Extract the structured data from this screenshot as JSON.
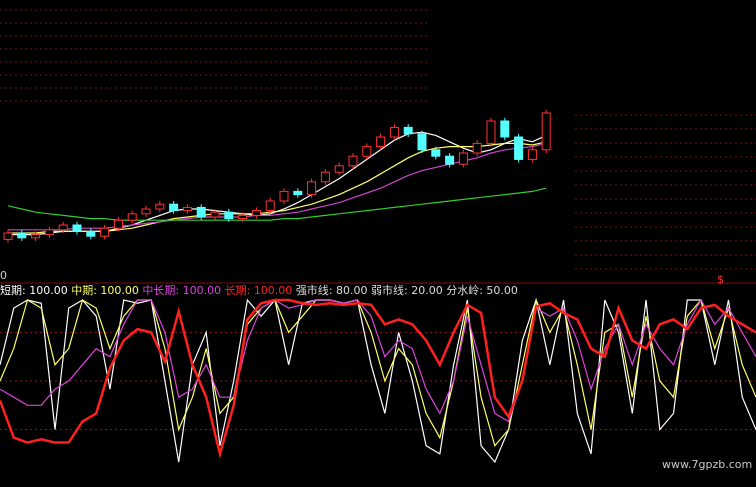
{
  "chart_data": [
    {
      "type": "candlestick",
      "open": [
        16,
        20,
        17,
        19,
        22,
        25,
        21,
        18,
        23,
        28,
        32,
        35,
        38,
        34,
        36,
        30,
        33,
        29,
        31,
        34,
        40,
        46,
        44,
        52,
        58,
        62,
        68,
        74,
        80,
        86,
        82,
        72,
        68,
        63,
        70,
        76,
        90,
        80,
        66,
        72
      ],
      "close": [
        20,
        17,
        19,
        22,
        25,
        21,
        18,
        23,
        28,
        32,
        35,
        38,
        34,
        36,
        30,
        33,
        29,
        31,
        34,
        40,
        46,
        44,
        52,
        58,
        62,
        68,
        74,
        80,
        86,
        82,
        72,
        68,
        63,
        70,
        76,
        90,
        80,
        66,
        72,
        95
      ],
      "high": [
        22,
        22,
        21,
        24,
        27,
        27,
        23,
        25,
        30,
        34,
        37,
        40,
        40,
        38,
        38,
        35,
        35,
        33,
        36,
        42,
        48,
        48,
        54,
        60,
        64,
        70,
        76,
        82,
        88,
        88,
        84,
        74,
        70,
        72,
        78,
        92,
        92,
        82,
        74,
        97
      ],
      "low": [
        14,
        15,
        15,
        17,
        20,
        19,
        16,
        16,
        21,
        26,
        30,
        33,
        32,
        32,
        28,
        28,
        27,
        27,
        29,
        32,
        38,
        42,
        42,
        50,
        56,
        60,
        66,
        72,
        78,
        80,
        70,
        66,
        61,
        61,
        68,
        74,
        78,
        64,
        64,
        70
      ],
      "up_color": "#ff3232",
      "down_color": "#54ffff",
      "ylim": [
        0,
        100
      ],
      "series": [
        {
          "color": "#ffffff",
          "values": [
            19,
            19,
            19,
            20,
            21,
            21,
            21,
            21,
            23,
            25,
            28,
            31,
            34,
            35,
            35,
            34,
            33,
            32,
            31,
            32,
            35,
            39,
            44,
            49,
            54,
            60,
            66,
            72,
            78,
            82,
            83,
            81,
            77,
            73,
            70,
            72,
            76,
            79,
            77,
            81
          ]
        },
        {
          "color": "#ffff66",
          "values": [
            20,
            20,
            20,
            21,
            21,
            21,
            21,
            21,
            22,
            23,
            25,
            27,
            29,
            30,
            31,
            32,
            32,
            32,
            32,
            33,
            34,
            36,
            38,
            41,
            44,
            48,
            52,
            57,
            62,
            67,
            71,
            73,
            74,
            74,
            74,
            75,
            76,
            76,
            75,
            77
          ]
        },
        {
          "color": "#cc44cc",
          "values": [
            22,
            22,
            22,
            22,
            22,
            23,
            23,
            23,
            24,
            25,
            26,
            27,
            28,
            29,
            30,
            30,
            30,
            30,
            31,
            31,
            32,
            33,
            35,
            37,
            39,
            42,
            45,
            48,
            52,
            56,
            59,
            61,
            63,
            65,
            67,
            70,
            72,
            73,
            74,
            76
          ]
        },
        {
          "color": "#33cc33",
          "values": [
            37,
            35,
            33,
            32,
            31,
            30,
            29,
            29,
            28,
            28,
            28,
            28,
            28,
            28,
            28,
            28,
            28,
            28,
            28,
            28,
            29,
            29,
            30,
            31,
            32,
            33,
            34,
            35,
            36,
            37,
            38,
            39,
            40,
            41,
            42,
            43,
            44,
            45,
            46,
            48
          ]
        }
      ],
      "axis_label": "0"
    },
    {
      "type": "line",
      "separator": ": ",
      "ylim": [
        0,
        100
      ],
      "series": [
        {
          "name": "短期",
          "value_label": "100.00",
          "color": "#ffffff",
          "values": [
            60,
            95,
            100,
            98,
            20,
            95,
            100,
            90,
            45,
            100,
            98,
            100,
            50,
            0,
            60,
            80,
            10,
            50,
            100,
            90,
            100,
            60,
            98,
            100,
            100,
            98,
            100,
            60,
            30,
            80,
            50,
            10,
            5,
            60,
            100,
            10,
            0,
            20,
            75,
            100,
            60,
            100,
            30,
            5,
            100,
            80,
            30,
            100,
            20,
            30,
            100,
            100,
            60,
            100,
            40,
            20
          ]
        },
        {
          "name": "中期",
          "value_label": "100.00",
          "color": "#ffff66",
          "values": [
            50,
            70,
            100,
            95,
            60,
            70,
            100,
            95,
            70,
            90,
            100,
            100,
            70,
            20,
            40,
            70,
            30,
            40,
            85,
            95,
            100,
            80,
            90,
            100,
            100,
            98,
            100,
            80,
            50,
            70,
            60,
            30,
            15,
            50,
            95,
            40,
            10,
            20,
            60,
            100,
            80,
            95,
            60,
            20,
            80,
            85,
            40,
            90,
            50,
            40,
            90,
            100,
            70,
            95,
            60,
            40
          ]
        },
        {
          "name": "中长期",
          "value_label": "100.00",
          "color": "#dd44dd",
          "values": [
            45,
            40,
            35,
            35,
            45,
            50,
            60,
            70,
            65,
            85,
            100,
            100,
            80,
            40,
            45,
            60,
            40,
            40,
            75,
            95,
            100,
            95,
            97,
            100,
            100,
            98,
            100,
            90,
            65,
            75,
            70,
            45,
            30,
            50,
            90,
            60,
            30,
            25,
            50,
            95,
            90,
            95,
            75,
            45,
            70,
            85,
            60,
            85,
            70,
            60,
            85,
            100,
            85,
            95,
            80,
            65
          ]
        },
        {
          "name": "长期",
          "value_label": "100.00",
          "color": "#ff2020",
          "values": [
            38,
            15,
            12,
            14,
            12,
            12,
            25,
            30,
            58,
            75,
            82,
            80,
            62,
            93,
            60,
            40,
            5,
            35,
            88,
            98,
            100,
            100,
            98,
            97,
            98,
            97,
            98,
            97,
            85,
            88,
            85,
            75,
            60,
            80,
            97,
            92,
            40,
            28,
            50,
            96,
            98,
            92,
            88,
            70,
            65,
            95,
            75,
            70,
            85,
            88,
            82,
            95,
            97,
            90,
            85,
            80
          ]
        }
      ],
      "reference_lines": [
        {
          "name": "强市线",
          "value": 80,
          "label": "80.00"
        },
        {
          "name": "弱市线",
          "value": 20,
          "label": "20.00"
        },
        {
          "name": "分水岭",
          "value": 50,
          "label": "50.00"
        }
      ],
      "marker": "$"
    }
  ],
  "watermark": "www.7gpzb.com"
}
